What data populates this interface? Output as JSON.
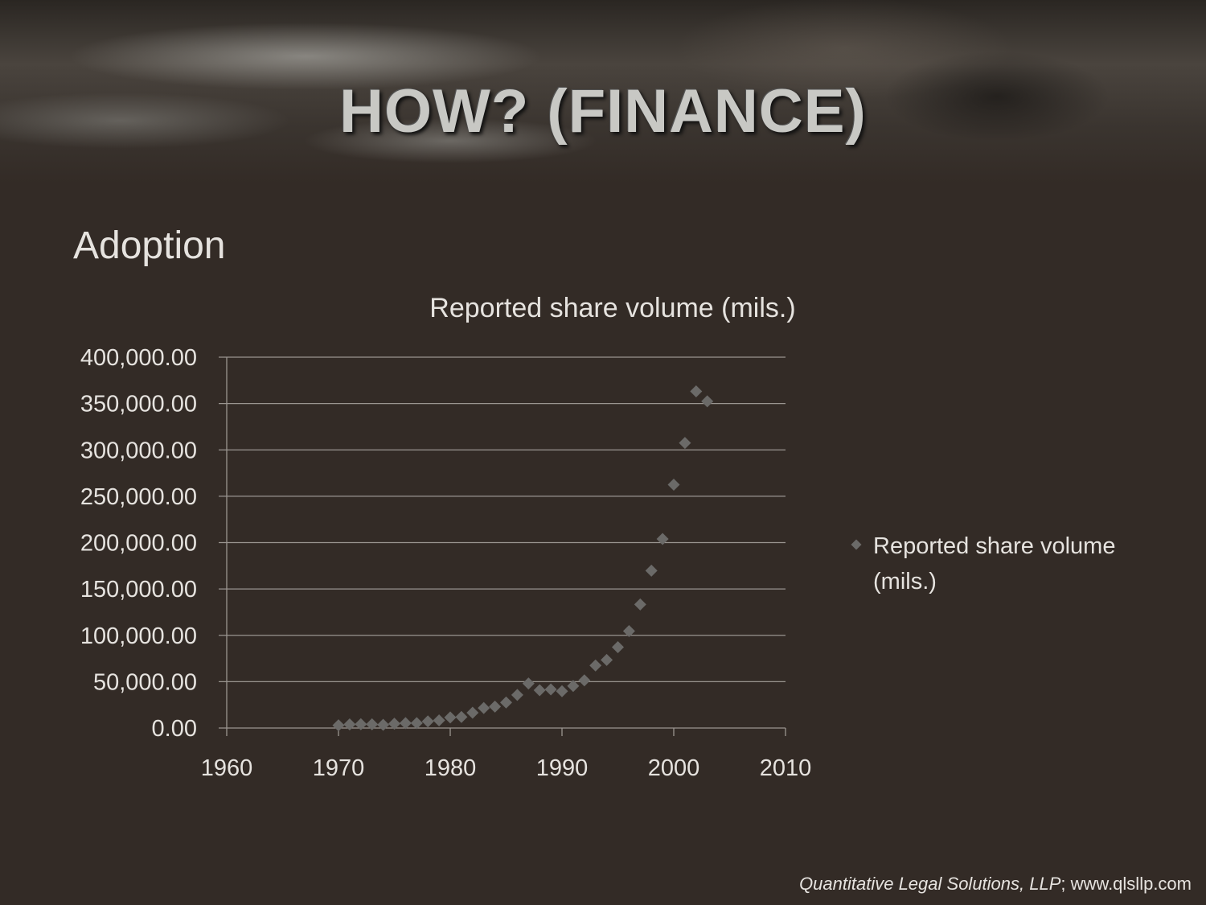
{
  "slide": {
    "title": "HOW? (FINANCE)",
    "subtitle": "Adoption",
    "footer_firm": "Quantitative Legal Solutions, LLP",
    "footer_sep": "; ",
    "footer_url": "www.qlsllp.com"
  },
  "colors": {
    "background": "#332b26",
    "text": "#e6e3df",
    "marker": "#6b6a68",
    "gridline": "#9a9590"
  },
  "chart_data": {
    "type": "scatter",
    "title": "Reported share volume (mils.)",
    "xlabel": "",
    "ylabel": "",
    "xlim": [
      1960,
      2010
    ],
    "ylim": [
      0,
      400000
    ],
    "x_ticks": [
      1960,
      1970,
      1980,
      1990,
      2000,
      2010
    ],
    "x_tick_labels": [
      "1960",
      "1970",
      "1980",
      "1990",
      "2000",
      "2010"
    ],
    "y_ticks": [
      0,
      50000,
      100000,
      150000,
      200000,
      250000,
      300000,
      350000,
      400000
    ],
    "y_tick_labels": [
      "0.00",
      "50,000.00",
      "100,000.00",
      "150,000.00",
      "200,000.00",
      "250,000.00",
      "300,000.00",
      "350,000.00",
      "400,000.00"
    ],
    "grid": "horizontal",
    "legend_position": "right",
    "marker": "diamond",
    "series": [
      {
        "name": "Reported share volume (mils.)",
        "points": [
          [
            1970,
            2900
          ],
          [
            1971,
            3900
          ],
          [
            1972,
            4100
          ],
          [
            1973,
            4000
          ],
          [
            1974,
            3500
          ],
          [
            1975,
            4700
          ],
          [
            1976,
            5300
          ],
          [
            1977,
            5300
          ],
          [
            1978,
            7200
          ],
          [
            1979,
            8200
          ],
          [
            1980,
            11400
          ],
          [
            1981,
            11900
          ],
          [
            1982,
            16500
          ],
          [
            1983,
            21600
          ],
          [
            1984,
            23100
          ],
          [
            1985,
            27500
          ],
          [
            1986,
            35700
          ],
          [
            1987,
            48000
          ],
          [
            1988,
            40800
          ],
          [
            1989,
            41700
          ],
          [
            1990,
            39700
          ],
          [
            1991,
            45300
          ],
          [
            1992,
            51400
          ],
          [
            1993,
            67500
          ],
          [
            1994,
            73400
          ],
          [
            1995,
            87200
          ],
          [
            1996,
            104600
          ],
          [
            1997,
            133300
          ],
          [
            1998,
            169700
          ],
          [
            1999,
            203900
          ],
          [
            2000,
            262500
          ],
          [
            2001,
            307500
          ],
          [
            2002,
            363100
          ],
          [
            2003,
            352400
          ]
        ]
      }
    ]
  }
}
